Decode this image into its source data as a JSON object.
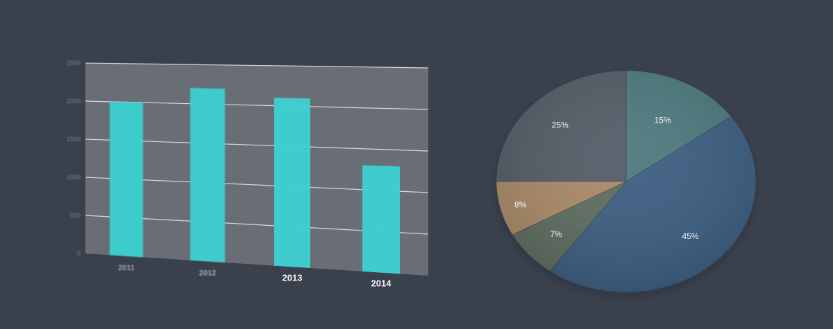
{
  "chart_data": [
    {
      "type": "bar",
      "categories": [
        "2011",
        "2012",
        "2013",
        "2014"
      ],
      "values": [
        2000,
        2200,
        2100,
        1300
      ],
      "yticks": [
        0,
        500,
        1000,
        1500,
        2000,
        2500
      ],
      "ylim": [
        0,
        2500
      ],
      "grid": true,
      "title": "",
      "xlabel": "",
      "ylabel": "",
      "colors": {
        "bar": "#3ecfcf",
        "panel": "#6b7078",
        "grid": "#e8ecef"
      }
    },
    {
      "type": "pie",
      "slices": [
        {
          "label": "15%",
          "value": 15,
          "color": "#4d7a7e"
        },
        {
          "label": "45%",
          "value": 45,
          "color": "#3e5f82"
        },
        {
          "label": "7%",
          "value": 7,
          "color": "#5f6e61"
        },
        {
          "label": "8%",
          "value": 8,
          "color": "#a98a68"
        },
        {
          "label": "25%",
          "value": 25,
          "color": "#565d68"
        }
      ],
      "start_angle_deg": -90,
      "direction": "clockwise"
    }
  ]
}
